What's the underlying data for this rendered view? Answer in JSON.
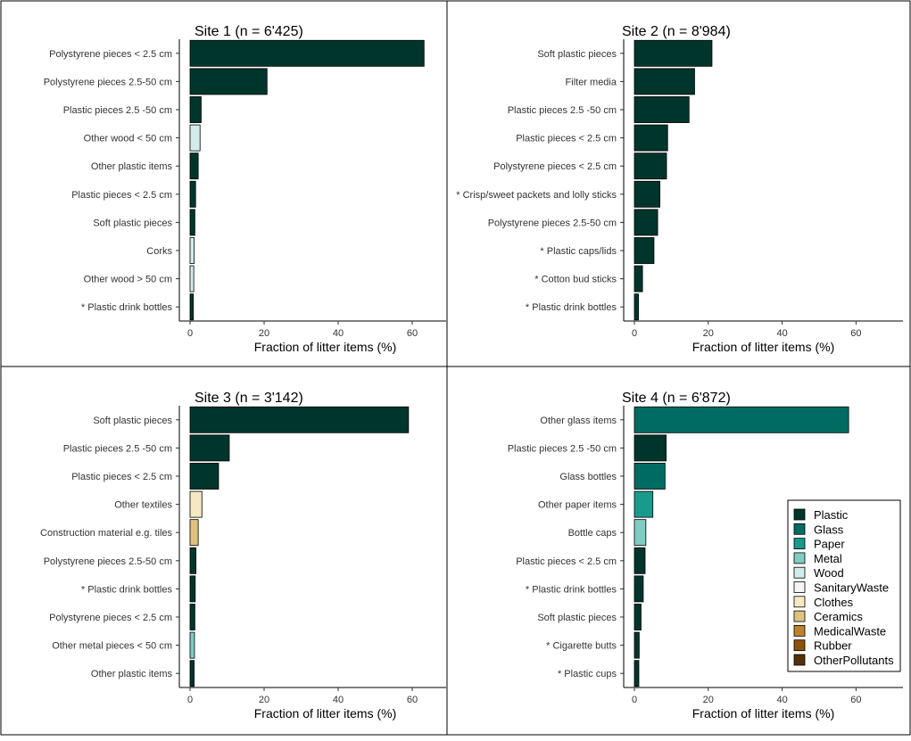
{
  "colors": {
    "Plastic": "#00352b",
    "Glass": "#006b60",
    "Paper": "#1a9a8d",
    "Metal": "#7fcdc2",
    "Wood": "#d2ecec",
    "SanitaryWaste": "#f5f5f5",
    "Clothes": "#f6e8c3",
    "Ceramics": "#dfc27d",
    "MedicalWaste": "#bf812d",
    "Rubber": "#8c510a",
    "OtherPollutants": "#543005"
  },
  "legend": {
    "items": [
      "Plastic",
      "Glass",
      "Paper",
      "Metal",
      "Wood",
      "SanitaryWaste",
      "Clothes",
      "Ceramics",
      "MedicalWaste",
      "Rubber",
      "OtherPollutants"
    ]
  },
  "chart_data": [
    {
      "type": "bar",
      "orientation": "horizontal",
      "title": "Site 1 (n = 6'425)",
      "xlabel": "Fraction of litter items (%)",
      "ylabel": "",
      "xlim": [
        -2,
        73
      ],
      "xticks": [
        0,
        20,
        40,
        60
      ],
      "categories": [
        "Polystyrene pieces < 2.5 cm",
        "Polystyrene pieces  2.5-50 cm",
        "Plastic pieces  2.5 -50 cm",
        "Other wood  < 50 cm",
        "Other plastic items",
        "Plastic pieces < 2.5 cm",
        "Soft plastic pieces",
        "Corks",
        "Other wood  > 50 cm",
        "* Plastic drink bottles"
      ],
      "values": [
        63.2,
        20.8,
        3.0,
        2.7,
        2.2,
        1.5,
        1.3,
        1.1,
        1.0,
        0.9
      ],
      "materials": [
        "Plastic",
        "Plastic",
        "Plastic",
        "Wood",
        "Plastic",
        "Plastic",
        "Plastic",
        "Wood",
        "Wood",
        "Plastic"
      ]
    },
    {
      "type": "bar",
      "orientation": "horizontal",
      "title": "Site 2 (n = 8'984)",
      "xlabel": "Fraction of litter items (%)",
      "ylabel": "",
      "xlim": [
        -2,
        73
      ],
      "xticks": [
        0,
        20,
        40,
        60
      ],
      "categories": [
        "Soft plastic pieces",
        "Filter media",
        "Plastic pieces  2.5 -50 cm",
        "Plastic pieces < 2.5 cm",
        "Polystyrene pieces < 2.5 cm",
        "* Crisp/sweet packets and lolly sticks",
        "Polystyrene pieces  2.5-50 cm",
        "* Plastic caps/lids",
        "* Cotton bud sticks",
        "* Plastic drink bottles"
      ],
      "values": [
        21.0,
        16.3,
        14.8,
        9.0,
        8.7,
        6.9,
        6.3,
        5.3,
        2.2,
        1.1
      ],
      "materials": [
        "Plastic",
        "Plastic",
        "Plastic",
        "Plastic",
        "Plastic",
        "Plastic",
        "Plastic",
        "Plastic",
        "Plastic",
        "Plastic"
      ]
    },
    {
      "type": "bar",
      "orientation": "horizontal",
      "title": "Site 3 (n = 3'142)",
      "xlabel": "Fraction of litter items (%)",
      "ylabel": "",
      "xlim": [
        -2,
        73
      ],
      "xticks": [
        0,
        20,
        40,
        60
      ],
      "categories": [
        "Soft plastic pieces",
        "Plastic pieces  2.5 -50 cm",
        "Plastic pieces < 2.5 cm",
        "Other textiles",
        "Construction material e.g. tiles",
        "Polystyrene pieces  2.5-50 cm",
        "* Plastic drink bottles",
        "Polystyrene pieces < 2.5 cm",
        "Other metal pieces < 50 cm",
        "Other plastic items"
      ],
      "values": [
        59.0,
        10.6,
        7.7,
        3.2,
        2.2,
        1.6,
        1.4,
        1.3,
        1.2,
        1.1
      ],
      "materials": [
        "Plastic",
        "Plastic",
        "Plastic",
        "Clothes",
        "Ceramics",
        "Plastic",
        "Plastic",
        "Plastic",
        "Metal",
        "Plastic"
      ]
    },
    {
      "type": "bar",
      "orientation": "horizontal",
      "title": "Site 4 (n = 6'872)",
      "xlabel": "Fraction of litter items (%)",
      "ylabel": "",
      "xlim": [
        -2,
        73
      ],
      "xticks": [
        0,
        20,
        40,
        60
      ],
      "categories": [
        "Other glass items",
        "Plastic pieces  2.5 -50 cm",
        "Glass bottles",
        "Other paper items",
        "Bottle caps",
        "Plastic pieces < 2.5 cm",
        "* Plastic drink bottles",
        "Soft plastic pieces",
        "* Cigarette butts",
        "* Plastic cups"
      ],
      "values": [
        58.0,
        8.6,
        8.3,
        5.0,
        3.1,
        2.9,
        2.4,
        1.8,
        1.3,
        1.2
      ],
      "materials": [
        "Glass",
        "Plastic",
        "Glass",
        "Paper",
        "Metal",
        "Plastic",
        "Plastic",
        "Plastic",
        "Plastic",
        "Plastic"
      ]
    }
  ]
}
